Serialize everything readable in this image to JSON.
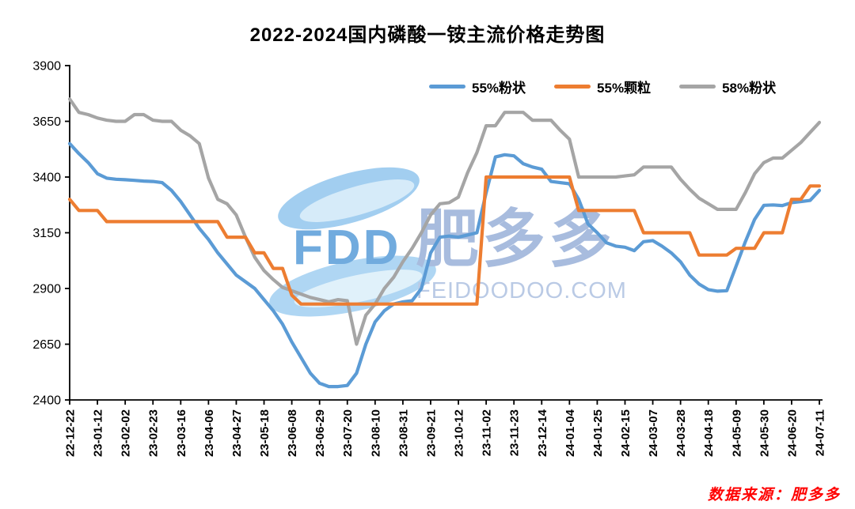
{
  "title": "2022-2024国内磷酸一铵主流价格走势图",
  "source_note": "数据来源：肥多多",
  "watermark": {
    "logo_text": "FDD",
    "brand_cn": "肥多多",
    "brand_url": "FEIDOODOO.COM"
  },
  "colors": {
    "blue": "#5B9BD5",
    "orange": "#ED7D31",
    "gray": "#A5A5A5",
    "axis": "#000000",
    "source_red": "#FF0000"
  },
  "chart_data": {
    "type": "line",
    "title": "2022-2024国内磷酸一铵主流价格走势图",
    "xlabel": "",
    "ylabel": "",
    "ylim": [
      2400,
      3900
    ],
    "y_ticks": [
      2400,
      2650,
      2900,
      3150,
      3400,
      3650,
      3900
    ],
    "grid": false,
    "legend_position": "top",
    "x_weekly_points": 82,
    "x_tick_every": 3,
    "x_tick_labels": [
      "22-12-22",
      "23-01-12",
      "23-02-02",
      "23-02-23",
      "23-03-16",
      "23-04-06",
      "23-04-27",
      "23-05-18",
      "23-06-08",
      "23-06-29",
      "23-07-20",
      "23-08-10",
      "23-08-31",
      "23-09-21",
      "23-10-12",
      "23-11-02",
      "23-11-23",
      "23-12-14",
      "24-01-04",
      "24-01-25",
      "24-02-15",
      "24-03-07",
      "24-03-28",
      "24-04-18",
      "24-05-09",
      "24-05-30",
      "24-06-20",
      "24-07-11"
    ],
    "series": [
      {
        "name": "55%粉状",
        "color": "#5B9BD5",
        "values": [
          3550,
          3505,
          3465,
          3415,
          3395,
          3390,
          3388,
          3385,
          3382,
          3380,
          3375,
          3340,
          3290,
          3230,
          3170,
          3120,
          3060,
          3010,
          2960,
          2930,
          2900,
          2850,
          2800,
          2740,
          2660,
          2590,
          2520,
          2475,
          2460,
          2460,
          2465,
          2520,
          2650,
          2750,
          2800,
          2830,
          2840,
          2845,
          2900,
          3060,
          3130,
          3135,
          3130,
          3140,
          3150,
          3330,
          3490,
          3500,
          3495,
          3460,
          3445,
          3435,
          3380,
          3375,
          3370,
          3300,
          3190,
          3150,
          3105,
          3090,
          3085,
          3070,
          3110,
          3115,
          3090,
          3060,
          3020,
          2960,
          2920,
          2895,
          2888,
          2890,
          3000,
          3110,
          3210,
          3273,
          3275,
          3272,
          3285,
          3290,
          3295,
          3340
        ]
      },
      {
        "name": "55%颗粒",
        "color": "#ED7D31",
        "values": [
          3300,
          3250,
          3250,
          3250,
          3200,
          3200,
          3200,
          3200,
          3200,
          3200,
          3200,
          3200,
          3200,
          3200,
          3200,
          3200,
          3200,
          3130,
          3130,
          3130,
          3060,
          3060,
          2990,
          2990,
          2870,
          2830,
          2830,
          2830,
          2830,
          2830,
          2830,
          2830,
          2830,
          2830,
          2830,
          2830,
          2830,
          2830,
          2830,
          2830,
          2830,
          2830,
          2830,
          2830,
          2830,
          3400,
          3400,
          3400,
          3400,
          3400,
          3400,
          3400,
          3400,
          3400,
          3400,
          3250,
          3250,
          3250,
          3250,
          3250,
          3250,
          3250,
          3150,
          3150,
          3150,
          3150,
          3150,
          3150,
          3050,
          3050,
          3050,
          3050,
          3080,
          3080,
          3080,
          3150,
          3150,
          3150,
          3300,
          3300,
          3360,
          3360
        ]
      },
      {
        "name": "58%粉状",
        "color": "#A5A5A5",
        "values": [
          3750,
          3690,
          3680,
          3665,
          3655,
          3650,
          3650,
          3680,
          3680,
          3655,
          3650,
          3650,
          3610,
          3585,
          3550,
          3395,
          3300,
          3280,
          3230,
          3130,
          3040,
          2980,
          2940,
          2905,
          2890,
          2875,
          2860,
          2850,
          2840,
          2850,
          2845,
          2650,
          2780,
          2830,
          2900,
          2950,
          3020,
          3080,
          3150,
          3230,
          3280,
          3285,
          3310,
          3420,
          3510,
          3630,
          3630,
          3690,
          3690,
          3690,
          3655,
          3655,
          3655,
          3610,
          3570,
          3400,
          3400,
          3400,
          3400,
          3400,
          3405,
          3410,
          3445,
          3445,
          3445,
          3445,
          3390,
          3345,
          3305,
          3280,
          3255,
          3255,
          3255,
          3330,
          3415,
          3465,
          3485,
          3485,
          3520,
          3555,
          3600,
          3645
        ]
      }
    ]
  }
}
